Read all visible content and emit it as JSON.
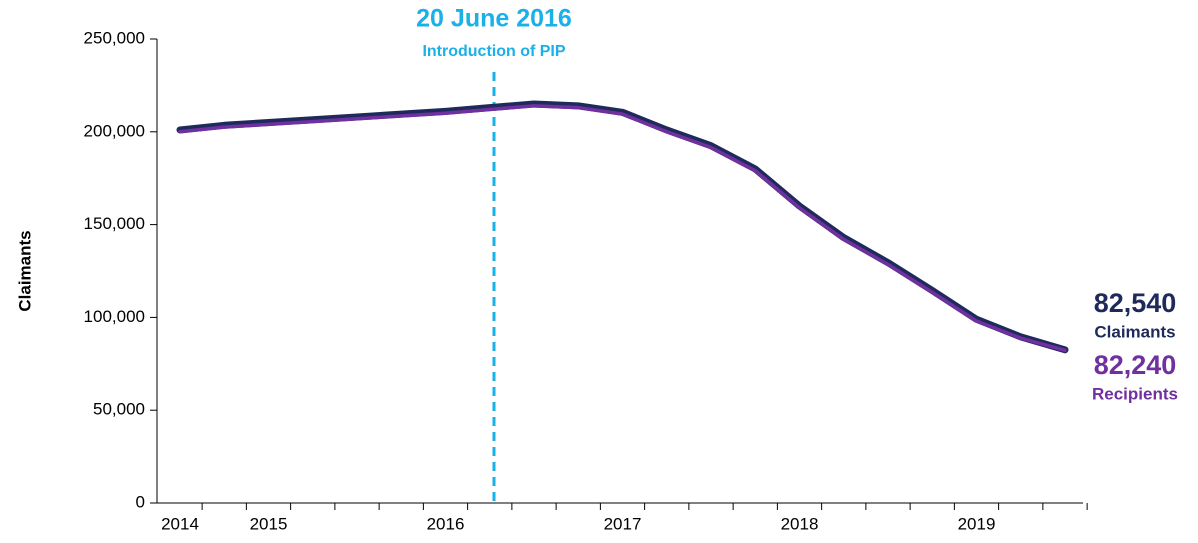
{
  "chart_data": {
    "type": "line",
    "ylabel": "Claimants",
    "annotation": {
      "title": "20 June 2016",
      "text": "Introduction of PIP",
      "color": "#1ab0e8"
    },
    "categories": [
      "2014",
      null,
      "2015",
      null,
      null,
      null,
      "2016",
      null,
      null,
      null,
      "2017",
      null,
      null,
      null,
      "2018",
      null,
      null,
      null,
      "2019",
      null,
      null
    ],
    "series": [
      {
        "name": "Claimants",
        "color": "#1f2a5c",
        "values": [
          201000,
          203500,
          205000,
          206500,
          208000,
          209500,
          211000,
          213000,
          215000,
          214000,
          210500,
          201000,
          192500,
          180000,
          160000,
          143000,
          129500,
          114500,
          99000,
          89500,
          82540
        ],
        "value_labels": [
          null,
          null,
          null,
          null,
          null,
          null,
          null,
          null,
          null,
          null,
          null,
          null,
          null,
          null,
          null,
          null,
          null,
          null,
          null,
          null,
          "82,540"
        ]
      },
      {
        "name": "Recipients",
        "color": "#7030a0",
        "values": [
          200000,
          202500,
          204000,
          205500,
          207000,
          208500,
          210000,
          212000,
          214000,
          213000,
          209500,
          200000,
          191500,
          179000,
          159000,
          142000,
          128500,
          113500,
          98000,
          88800,
          82240
        ],
        "value_labels": [
          null,
          null,
          null,
          null,
          null,
          null,
          null,
          null,
          null,
          null,
          null,
          null,
          null,
          null,
          null,
          null,
          null,
          null,
          null,
          null,
          "82,240"
        ]
      }
    ],
    "ylim": [
      0,
      250000
    ],
    "yticks": [
      0,
      {
        "value": 50000,
        "label": "50,000"
      },
      {
        "value": 100000,
        "label": "100,000"
      },
      {
        "value": 150000,
        "label": "150,000"
      },
      {
        "value": 200000,
        "label": "200,000"
      },
      {
        "value": 250000,
        "label": "250,000"
      }
    ],
    "grid": false
  }
}
